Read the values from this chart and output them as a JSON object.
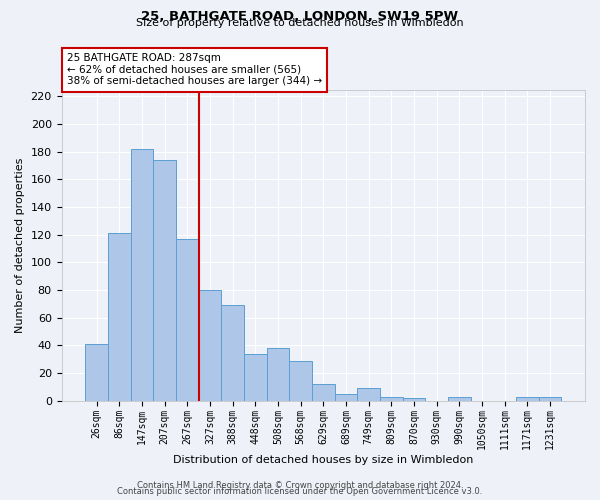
{
  "title1": "25, BATHGATE ROAD, LONDON, SW19 5PW",
  "title2": "Size of property relative to detached houses in Wimbledon",
  "xlabel": "Distribution of detached houses by size in Wimbledon",
  "ylabel": "Number of detached properties",
  "bin_labels": [
    "26sqm",
    "86sqm",
    "147sqm",
    "207sqm",
    "267sqm",
    "327sqm",
    "388sqm",
    "448sqm",
    "508sqm",
    "568sqm",
    "629sqm",
    "689sqm",
    "749sqm",
    "809sqm",
    "870sqm",
    "930sqm",
    "990sqm",
    "1050sqm",
    "1111sqm",
    "1171sqm",
    "1231sqm"
  ],
  "bar_heights": [
    41,
    121,
    182,
    174,
    117,
    80,
    69,
    34,
    38,
    29,
    12,
    5,
    9,
    3,
    2,
    0,
    3,
    0,
    0,
    3,
    3
  ],
  "bar_color": "#aec6e8",
  "bar_edge_color": "#5a9fd4",
  "annotation_text": "25 BATHGATE ROAD: 287sqm\n← 62% of detached houses are smaller (565)\n38% of semi-detached houses are larger (344) →",
  "annotation_box_color": "#ffffff",
  "annotation_box_edge": "#cc0000",
  "vline_color": "#cc0000",
  "footer1": "Contains HM Land Registry data © Crown copyright and database right 2024.",
  "footer2": "Contains public sector information licensed under the Open Government Licence v3.0.",
  "ylim": [
    0,
    225
  ],
  "yticks": [
    0,
    20,
    40,
    60,
    80,
    100,
    120,
    140,
    160,
    180,
    200,
    220
  ],
  "background_color": "#eef2f8",
  "vline_pos": 4.5
}
